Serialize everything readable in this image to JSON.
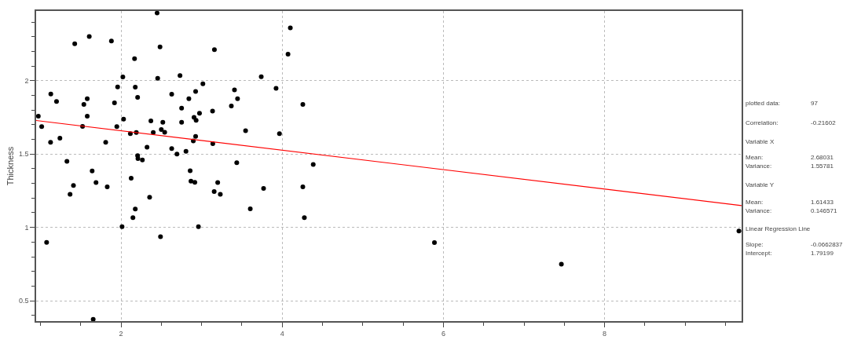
{
  "chart_data": {
    "type": "scatter",
    "ylabel": "Thickness",
    "marker": "circle",
    "grid": true,
    "xlim": [
      0.947,
      9.7
    ],
    "ylim": [
      0.361,
      2.476
    ],
    "xticks": [
      {
        "value": 1,
        "label": null
      },
      {
        "value": 1.5,
        "label": null
      },
      2,
      {
        "value": 2.5,
        "label": null
      },
      {
        "value": 3,
        "label": null
      },
      {
        "value": 3.5,
        "label": null
      },
      4,
      {
        "value": 4.5,
        "label": null
      },
      {
        "value": 5,
        "label": null
      },
      {
        "value": 5.5,
        "label": null
      },
      6,
      {
        "value": 6.5,
        "label": null
      },
      {
        "value": 7,
        "label": null
      },
      {
        "value": 7.5,
        "label": null
      },
      8,
      {
        "value": 8.5,
        "label": null
      },
      {
        "value": 9,
        "label": null
      },
      {
        "value": 9.5,
        "label": null
      }
    ],
    "yticks": [
      {
        "value": 0.4,
        "label": null
      },
      0.5,
      {
        "value": 0.6,
        "label": null
      },
      {
        "value": 0.7,
        "label": null
      },
      {
        "value": 0.8,
        "label": null
      },
      {
        "value": 0.9,
        "label": null
      },
      1,
      {
        "value": 1.1,
        "label": null
      },
      {
        "value": 1.2,
        "label": null
      },
      {
        "value": 1.3,
        "label": null
      },
      {
        "value": 1.4,
        "label": null
      },
      1.5,
      {
        "value": 1.6,
        "label": null
      },
      {
        "value": 1.7,
        "label": null
      },
      {
        "value": 1.8,
        "label": null
      },
      {
        "value": 1.9,
        "label": null
      },
      2,
      {
        "value": 2.1,
        "label": null
      },
      {
        "value": 2.2,
        "label": null
      },
      {
        "value": 2.3,
        "label": null
      },
      {
        "value": 2.4,
        "label": null
      }
    ],
    "series": [
      {
        "color": "#000000",
        "x": [
          0.974,
          1.016,
          1.077,
          1.129,
          1.126,
          1.2,
          1.242,
          1.329,
          1.368,
          1.41,
          1.426,
          1.523,
          1.539,
          1.581,
          1.581,
          1.606,
          1.642,
          1.655,
          1.69,
          1.81,
          1.829,
          1.881,
          1.919,
          1.948,
          1.958,
          2.013,
          2.023,
          2.032,
          2.116,
          2.126,
          2.148,
          2.168,
          2.177,
          2.177,
          2.19,
          2.206,
          2.206,
          2.21,
          2.265,
          2.323,
          2.355,
          2.371,
          2.4,
          2.448,
          2.455,
          2.484,
          2.49,
          2.5,
          2.519,
          2.542,
          2.629,
          2.629,
          2.694,
          2.732,
          2.752,
          2.752,
          2.806,
          2.842,
          2.858,
          2.868,
          2.897,
          2.916,
          2.926,
          2.906,
          2.932,
          2.926,
          2.961,
          2.974,
          3.016,
          3.136,
          3.139,
          3.156,
          3.159,
          3.2,
          3.232,
          3.369,
          3.408,
          3.436,
          3.446,
          3.546,
          3.604,
          3.74,
          3.769,
          3.924,
          3.966,
          4.072,
          4.101,
          4.256,
          4.256,
          4.275,
          4.385,
          5.889,
          7.464,
          9.667
        ],
        "values": [
          1.759,
          1.688,
          0.898,
          1.91,
          1.58,
          1.859,
          1.609,
          1.45,
          1.226,
          1.286,
          2.252,
          1.689,
          1.839,
          1.877,
          1.759,
          2.302,
          1.385,
          0.373,
          1.306,
          1.58,
          1.276,
          2.271,
          1.849,
          1.688,
          1.958,
          1.005,
          2.026,
          1.738,
          1.639,
          1.335,
          1.066,
          2.151,
          1.957,
          1.125,
          1.648,
          1.887,
          1.49,
          1.469,
          1.46,
          1.547,
          1.205,
          1.727,
          1.648,
          2.462,
          2.017,
          2.231,
          0.937,
          1.668,
          1.717,
          1.649,
          1.908,
          1.538,
          1.5,
          2.036,
          1.814,
          1.717,
          1.519,
          1.877,
          1.387,
          1.316,
          1.59,
          1.307,
          1.927,
          1.75,
          1.731,
          1.62,
          1.005,
          1.778,
          1.979,
          1.793,
          1.571,
          1.245,
          2.212,
          1.306,
          1.226,
          1.828,
          1.938,
          1.441,
          1.878,
          1.66,
          1.127,
          2.028,
          1.266,
          1.948,
          1.639,
          2.182,
          2.361,
          1.839,
          1.276,
          1.066,
          1.429,
          0.896,
          0.749,
          0.976
        ]
      },
      {
        "type": "line",
        "marker": "none",
        "color": "#ff0000",
        "x": [
          0.947,
          9.7
        ],
        "values": [
          1.729,
          1.149
        ]
      }
    ],
    "annotations": [
      "plotted data:",
      "97",
      "Correlation:",
      "-0.21602",
      "Variable X",
      "Mean:",
      "2.68031",
      "Variance:",
      "1.55781",
      "Variable Y",
      "Mean:",
      "1.61433",
      "Variance:",
      "0.146571",
      "Linear Regression Line",
      "Slope:",
      "-0.0662837",
      "Intercept:",
      "1.79199"
    ]
  }
}
